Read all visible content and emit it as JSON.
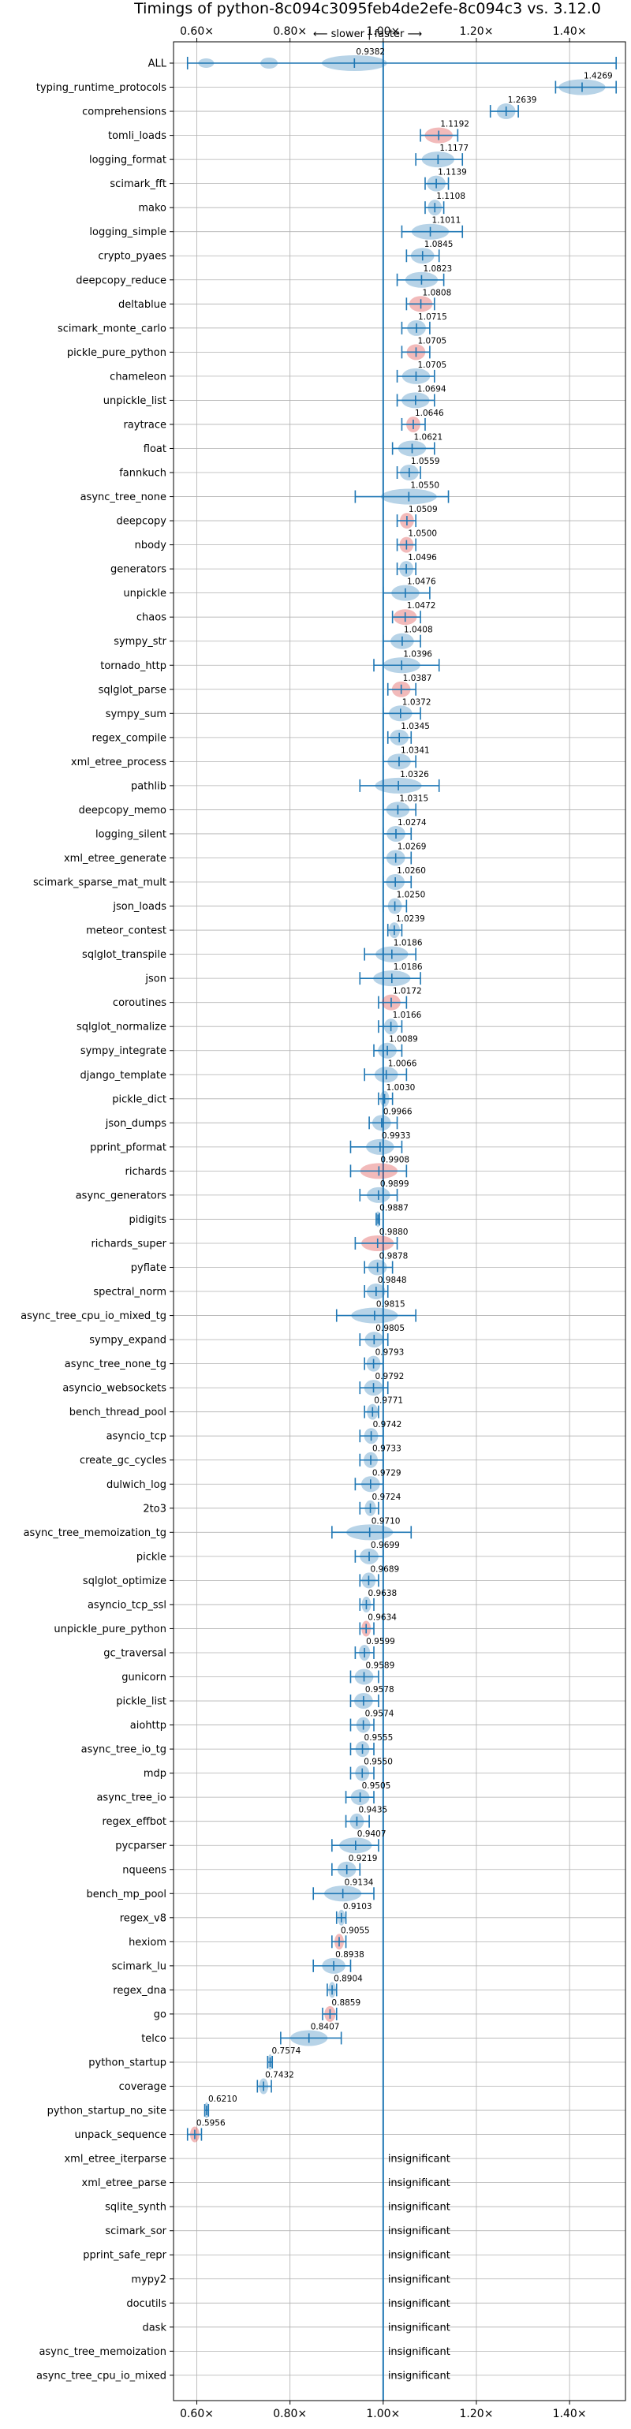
{
  "chart_data": {
    "type": "violin",
    "title": "Timings of python-8c094c3095feb4de2efe-8c094c3 vs. 3.12.0",
    "subtitle": "⟵ slower | faster ⟶",
    "xlim": [
      0.55,
      1.52
    ],
    "xticks": [
      0.6,
      0.8,
      1.0,
      1.2,
      1.4
    ],
    "xtick_labels": [
      "0.60×",
      "0.80×",
      "1.00×",
      "1.20×",
      "1.40×"
    ],
    "reference_line": 1.0,
    "grid": true,
    "insignificant_label": "insignificant",
    "colors": {
      "faster": "#1f77b4",
      "slower": "#d62728",
      "line": "#1f77b4"
    },
    "benchmarks": [
      {
        "name": "ALL",
        "value": 0.9382,
        "lo": 0.58,
        "hi": 1.5,
        "spread": 0.07,
        "color": "blue"
      },
      {
        "name": "typing_runtime_protocols",
        "value": 1.4269,
        "lo": 1.37,
        "hi": 1.5,
        "spread": 0.05,
        "color": "blue"
      },
      {
        "name": "comprehensions",
        "value": 1.2639,
        "lo": 1.23,
        "hi": 1.29,
        "spread": 0.02,
        "color": "blue"
      },
      {
        "name": "tomli_loads",
        "value": 1.1192,
        "lo": 1.08,
        "hi": 1.16,
        "spread": 0.03,
        "color": "red"
      },
      {
        "name": "logging_format",
        "value": 1.1177,
        "lo": 1.07,
        "hi": 1.17,
        "spread": 0.035,
        "color": "blue"
      },
      {
        "name": "scimark_fft",
        "value": 1.1139,
        "lo": 1.09,
        "hi": 1.14,
        "spread": 0.02,
        "color": "blue"
      },
      {
        "name": "mako",
        "value": 1.1108,
        "lo": 1.09,
        "hi": 1.13,
        "spread": 0.015,
        "color": "blue"
      },
      {
        "name": "logging_simple",
        "value": 1.1011,
        "lo": 1.04,
        "hi": 1.17,
        "spread": 0.04,
        "color": "blue"
      },
      {
        "name": "crypto_pyaes",
        "value": 1.0845,
        "lo": 1.05,
        "hi": 1.12,
        "spread": 0.025,
        "color": "blue"
      },
      {
        "name": "deepcopy_reduce",
        "value": 1.0823,
        "lo": 1.03,
        "hi": 1.13,
        "spread": 0.035,
        "color": "blue"
      },
      {
        "name": "deltablue",
        "value": 1.0808,
        "lo": 1.05,
        "hi": 1.11,
        "spread": 0.025,
        "color": "red"
      },
      {
        "name": "scimark_monte_carlo",
        "value": 1.0715,
        "lo": 1.04,
        "hi": 1.1,
        "spread": 0.02,
        "color": "blue"
      },
      {
        "name": "pickle_pure_python",
        "value": 1.0705,
        "lo": 1.04,
        "hi": 1.1,
        "spread": 0.02,
        "color": "red"
      },
      {
        "name": "chameleon",
        "value": 1.0705,
        "lo": 1.03,
        "hi": 1.11,
        "spread": 0.03,
        "color": "blue"
      },
      {
        "name": "unpickle_list",
        "value": 1.0694,
        "lo": 1.03,
        "hi": 1.11,
        "spread": 0.03,
        "color": "blue"
      },
      {
        "name": "raytrace",
        "value": 1.0646,
        "lo": 1.04,
        "hi": 1.09,
        "spread": 0.015,
        "color": "red"
      },
      {
        "name": "float",
        "value": 1.0621,
        "lo": 1.02,
        "hi": 1.11,
        "spread": 0.03,
        "color": "blue"
      },
      {
        "name": "fannkuch",
        "value": 1.0559,
        "lo": 1.03,
        "hi": 1.08,
        "spread": 0.02,
        "color": "blue"
      },
      {
        "name": "async_tree_none",
        "value": 1.055,
        "lo": 0.94,
        "hi": 1.14,
        "spread": 0.06,
        "color": "blue"
      },
      {
        "name": "deepcopy",
        "value": 1.0509,
        "lo": 1.03,
        "hi": 1.07,
        "spread": 0.015,
        "color": "red"
      },
      {
        "name": "nbody",
        "value": 1.05,
        "lo": 1.03,
        "hi": 1.07,
        "spread": 0.015,
        "color": "red"
      },
      {
        "name": "generators",
        "value": 1.0496,
        "lo": 1.03,
        "hi": 1.07,
        "spread": 0.015,
        "color": "blue"
      },
      {
        "name": "unpickle",
        "value": 1.0476,
        "lo": 1.0,
        "hi": 1.1,
        "spread": 0.03,
        "color": "blue"
      },
      {
        "name": "chaos",
        "value": 1.0472,
        "lo": 1.02,
        "hi": 1.08,
        "spread": 0.025,
        "color": "red"
      },
      {
        "name": "sympy_str",
        "value": 1.0408,
        "lo": 1.0,
        "hi": 1.08,
        "spread": 0.025,
        "color": "blue"
      },
      {
        "name": "tornado_http",
        "value": 1.0396,
        "lo": 0.98,
        "hi": 1.12,
        "spread": 0.04,
        "color": "blue"
      },
      {
        "name": "sqlglot_parse",
        "value": 1.0387,
        "lo": 1.01,
        "hi": 1.07,
        "spread": 0.02,
        "color": "red"
      },
      {
        "name": "sympy_sum",
        "value": 1.0372,
        "lo": 1.0,
        "hi": 1.08,
        "spread": 0.025,
        "color": "blue"
      },
      {
        "name": "regex_compile",
        "value": 1.0345,
        "lo": 1.01,
        "hi": 1.06,
        "spread": 0.02,
        "color": "blue"
      },
      {
        "name": "xml_etree_process",
        "value": 1.0341,
        "lo": 1.0,
        "hi": 1.07,
        "spread": 0.025,
        "color": "blue"
      },
      {
        "name": "pathlib",
        "value": 1.0326,
        "lo": 0.95,
        "hi": 1.12,
        "spread": 0.05,
        "color": "blue"
      },
      {
        "name": "deepcopy_memo",
        "value": 1.0315,
        "lo": 1.0,
        "hi": 1.07,
        "spread": 0.025,
        "color": "blue"
      },
      {
        "name": "logging_silent",
        "value": 1.0274,
        "lo": 1.0,
        "hi": 1.06,
        "spread": 0.02,
        "color": "blue"
      },
      {
        "name": "xml_etree_generate",
        "value": 1.0269,
        "lo": 1.0,
        "hi": 1.06,
        "spread": 0.02,
        "color": "blue"
      },
      {
        "name": "scimark_sparse_mat_mult",
        "value": 1.026,
        "lo": 1.0,
        "hi": 1.06,
        "spread": 0.02,
        "color": "blue"
      },
      {
        "name": "json_loads",
        "value": 1.025,
        "lo": 1.0,
        "hi": 1.05,
        "spread": 0.015,
        "color": "blue"
      },
      {
        "name": "meteor_contest",
        "value": 1.0239,
        "lo": 1.01,
        "hi": 1.04,
        "spread": 0.012,
        "color": "blue"
      },
      {
        "name": "sqlglot_transpile",
        "value": 1.0186,
        "lo": 0.96,
        "hi": 1.07,
        "spread": 0.035,
        "color": "blue"
      },
      {
        "name": "json",
        "value": 1.0186,
        "lo": 0.95,
        "hi": 1.08,
        "spread": 0.04,
        "color": "blue"
      },
      {
        "name": "coroutines",
        "value": 1.0172,
        "lo": 0.99,
        "hi": 1.05,
        "spread": 0.02,
        "color": "red"
      },
      {
        "name": "sqlglot_normalize",
        "value": 1.0166,
        "lo": 0.99,
        "hi": 1.04,
        "spread": 0.015,
        "color": "blue"
      },
      {
        "name": "sympy_integrate",
        "value": 1.0089,
        "lo": 0.98,
        "hi": 1.04,
        "spread": 0.02,
        "color": "blue"
      },
      {
        "name": "django_template",
        "value": 1.0066,
        "lo": 0.96,
        "hi": 1.05,
        "spread": 0.025,
        "color": "blue"
      },
      {
        "name": "pickle_dict",
        "value": 1.003,
        "lo": 0.99,
        "hi": 1.02,
        "spread": 0.01,
        "color": "blue"
      },
      {
        "name": "json_dumps",
        "value": 0.9966,
        "lo": 0.97,
        "hi": 1.03,
        "spread": 0.02,
        "color": "blue"
      },
      {
        "name": "pprint_pformat",
        "value": 0.9933,
        "lo": 0.93,
        "hi": 1.04,
        "spread": 0.03,
        "color": "blue"
      },
      {
        "name": "richards",
        "value": 0.9908,
        "lo": 0.93,
        "hi": 1.05,
        "spread": 0.04,
        "color": "red"
      },
      {
        "name": "async_generators",
        "value": 0.9899,
        "lo": 0.95,
        "hi": 1.03,
        "spread": 0.025,
        "color": "blue"
      },
      {
        "name": "pidigits",
        "value": 0.9887,
        "lo": 0.985,
        "hi": 0.992,
        "spread": 0.004,
        "color": "blue"
      },
      {
        "name": "richards_super",
        "value": 0.988,
        "lo": 0.94,
        "hi": 1.03,
        "spread": 0.035,
        "color": "red"
      },
      {
        "name": "pyflate",
        "value": 0.9878,
        "lo": 0.96,
        "hi": 1.02,
        "spread": 0.02,
        "color": "blue"
      },
      {
        "name": "spectral_norm",
        "value": 0.9848,
        "lo": 0.96,
        "hi": 1.01,
        "spread": 0.02,
        "color": "blue"
      },
      {
        "name": "async_tree_cpu_io_mixed_tg",
        "value": 0.9815,
        "lo": 0.9,
        "hi": 1.07,
        "spread": 0.05,
        "color": "blue"
      },
      {
        "name": "sympy_expand",
        "value": 0.9805,
        "lo": 0.95,
        "hi": 1.01,
        "spread": 0.02,
        "color": "blue"
      },
      {
        "name": "async_tree_none_tg",
        "value": 0.9793,
        "lo": 0.96,
        "hi": 1.0,
        "spread": 0.015,
        "color": "blue"
      },
      {
        "name": "asyncio_websockets",
        "value": 0.9792,
        "lo": 0.95,
        "hi": 1.01,
        "spread": 0.02,
        "color": "blue"
      },
      {
        "name": "bench_thread_pool",
        "value": 0.9771,
        "lo": 0.96,
        "hi": 0.99,
        "spread": 0.012,
        "color": "blue"
      },
      {
        "name": "asyncio_tcp",
        "value": 0.9742,
        "lo": 0.95,
        "hi": 1.0,
        "spread": 0.015,
        "color": "blue"
      },
      {
        "name": "create_gc_cycles",
        "value": 0.9733,
        "lo": 0.95,
        "hi": 1.0,
        "spread": 0.015,
        "color": "blue"
      },
      {
        "name": "dulwich_log",
        "value": 0.9729,
        "lo": 0.94,
        "hi": 1.0,
        "spread": 0.02,
        "color": "blue"
      },
      {
        "name": "2to3",
        "value": 0.9724,
        "lo": 0.95,
        "hi": 0.99,
        "spread": 0.012,
        "color": "blue"
      },
      {
        "name": "async_tree_memoization_tg",
        "value": 0.971,
        "lo": 0.89,
        "hi": 1.06,
        "spread": 0.05,
        "color": "blue"
      },
      {
        "name": "pickle",
        "value": 0.9699,
        "lo": 0.94,
        "hi": 1.0,
        "spread": 0.02,
        "color": "blue"
      },
      {
        "name": "sqlglot_optimize",
        "value": 0.9689,
        "lo": 0.95,
        "hi": 0.99,
        "spread": 0.015,
        "color": "blue"
      },
      {
        "name": "asyncio_tcp_ssl",
        "value": 0.9638,
        "lo": 0.95,
        "hi": 0.98,
        "spread": 0.01,
        "color": "blue"
      },
      {
        "name": "unpickle_pure_python",
        "value": 0.9634,
        "lo": 0.95,
        "hi": 0.98,
        "spread": 0.01,
        "color": "red"
      },
      {
        "name": "gc_traversal",
        "value": 0.9599,
        "lo": 0.94,
        "hi": 0.98,
        "spread": 0.012,
        "color": "blue"
      },
      {
        "name": "gunicorn",
        "value": 0.9589,
        "lo": 0.93,
        "hi": 0.99,
        "spread": 0.02,
        "color": "blue"
      },
      {
        "name": "pickle_list",
        "value": 0.9578,
        "lo": 0.93,
        "hi": 0.99,
        "spread": 0.02,
        "color": "blue"
      },
      {
        "name": "aiohttp",
        "value": 0.9574,
        "lo": 0.93,
        "hi": 0.98,
        "spread": 0.015,
        "color": "blue"
      },
      {
        "name": "async_tree_io_tg",
        "value": 0.9555,
        "lo": 0.93,
        "hi": 0.98,
        "spread": 0.015,
        "color": "blue"
      },
      {
        "name": "mdp",
        "value": 0.955,
        "lo": 0.93,
        "hi": 0.98,
        "spread": 0.015,
        "color": "blue"
      },
      {
        "name": "async_tree_io",
        "value": 0.9505,
        "lo": 0.92,
        "hi": 0.98,
        "spread": 0.02,
        "color": "blue"
      },
      {
        "name": "regex_effbot",
        "value": 0.9435,
        "lo": 0.92,
        "hi": 0.97,
        "spread": 0.015,
        "color": "blue"
      },
      {
        "name": "pycparser",
        "value": 0.9407,
        "lo": 0.89,
        "hi": 0.99,
        "spread": 0.035,
        "color": "blue"
      },
      {
        "name": "nqueens",
        "value": 0.9219,
        "lo": 0.89,
        "hi": 0.95,
        "spread": 0.02,
        "color": "blue"
      },
      {
        "name": "bench_mp_pool",
        "value": 0.9134,
        "lo": 0.85,
        "hi": 0.98,
        "spread": 0.04,
        "color": "blue"
      },
      {
        "name": "regex_v8",
        "value": 0.9103,
        "lo": 0.9,
        "hi": 0.92,
        "spread": 0.008,
        "color": "blue"
      },
      {
        "name": "hexiom",
        "value": 0.9055,
        "lo": 0.89,
        "hi": 0.92,
        "spread": 0.01,
        "color": "red"
      },
      {
        "name": "scimark_lu",
        "value": 0.8938,
        "lo": 0.85,
        "hi": 0.93,
        "spread": 0.025,
        "color": "blue"
      },
      {
        "name": "regex_dna",
        "value": 0.8904,
        "lo": 0.88,
        "hi": 0.9,
        "spread": 0.008,
        "color": "blue"
      },
      {
        "name": "go",
        "value": 0.8859,
        "lo": 0.87,
        "hi": 0.9,
        "spread": 0.012,
        "color": "red"
      },
      {
        "name": "telco",
        "value": 0.8407,
        "lo": 0.78,
        "hi": 0.91,
        "spread": 0.04,
        "color": "blue"
      },
      {
        "name": "python_startup",
        "value": 0.7574,
        "lo": 0.752,
        "hi": 0.762,
        "spread": 0.004,
        "color": "blue"
      },
      {
        "name": "coverage",
        "value": 0.7432,
        "lo": 0.73,
        "hi": 0.76,
        "spread": 0.01,
        "color": "blue"
      },
      {
        "name": "python_startup_no_site",
        "value": 0.621,
        "lo": 0.617,
        "hi": 0.625,
        "spread": 0.004,
        "color": "blue"
      },
      {
        "name": "unpack_sequence",
        "value": 0.5956,
        "lo": 0.58,
        "hi": 0.61,
        "spread": 0.01,
        "color": "red"
      },
      {
        "name": "xml_etree_iterparse",
        "insignificant": true
      },
      {
        "name": "xml_etree_parse",
        "insignificant": true
      },
      {
        "name": "sqlite_synth",
        "insignificant": true
      },
      {
        "name": "scimark_sor",
        "insignificant": true
      },
      {
        "name": "pprint_safe_repr",
        "insignificant": true
      },
      {
        "name": "mypy2",
        "insignificant": true
      },
      {
        "name": "docutils",
        "insignificant": true
      },
      {
        "name": "dask",
        "insignificant": true
      },
      {
        "name": "async_tree_memoization",
        "insignificant": true
      },
      {
        "name": "async_tree_cpu_io_mixed",
        "insignificant": true
      }
    ]
  }
}
